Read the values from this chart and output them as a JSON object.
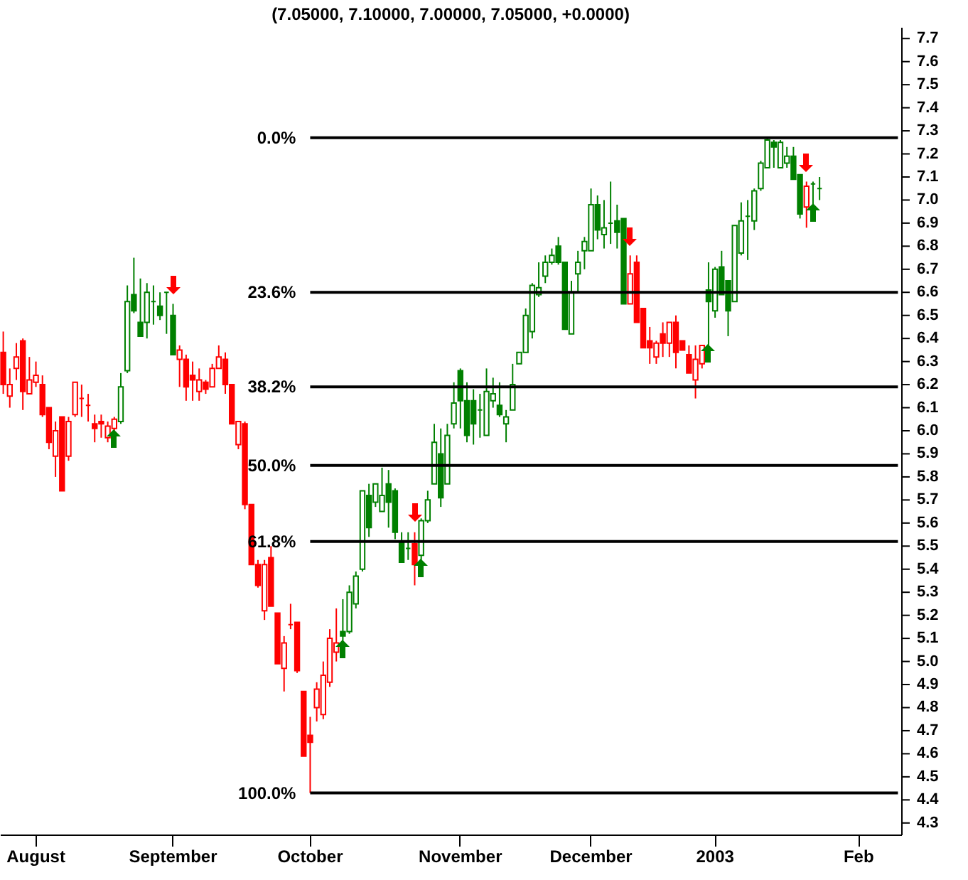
{
  "chart_data": {
    "type": "candlestick",
    "title": "(7.05000, 7.10000, 7.00000, 7.05000, +0.0000)",
    "categories": [
      null,
      null,
      null,
      null,
      null,
      "August",
      null,
      null,
      null,
      null,
      null,
      null,
      null,
      null,
      null,
      null,
      null,
      null,
      null,
      null,
      null,
      null,
      null,
      null,
      null,
      null,
      "September",
      null,
      null,
      null,
      null,
      null,
      null,
      null,
      null,
      null,
      null,
      null,
      null,
      null,
      null,
      null,
      null,
      null,
      null,
      null,
      null,
      "October",
      null,
      null,
      null,
      null,
      null,
      null,
      null,
      null,
      null,
      null,
      null,
      null,
      null,
      null,
      null,
      null,
      null,
      null,
      null,
      null,
      null,
      null,
      "November",
      null,
      null,
      null,
      null,
      null,
      null,
      null,
      null,
      null,
      null,
      null,
      null,
      null,
      null,
      null,
      null,
      null,
      null,
      null,
      "December",
      null,
      null,
      null,
      null,
      null,
      null,
      null,
      null,
      null,
      null,
      null,
      null,
      null,
      null,
      null,
      null,
      null,
      null,
      "2003",
      null,
      null,
      null,
      null,
      null,
      null,
      null,
      null,
      null,
      null,
      null,
      null,
      null,
      null,
      null,
      null,
      null,
      null,
      null,
      null,
      null,
      "Feb",
      null,
      null,
      null,
      null,
      null,
      null
    ],
    "ohlc": [
      [
        6.34,
        6.43,
        6.16,
        6.2
      ],
      [
        6.15,
        6.27,
        6.1,
        6.2
      ],
      [
        6.27,
        6.38,
        6.22,
        6.32
      ],
      [
        6.39,
        6.4,
        6.09,
        6.17
      ],
      [
        6.16,
        6.32,
        6.16,
        6.22
      ],
      [
        6.21,
        6.3,
        6.19,
        6.24
      ],
      [
        6.2,
        6.24,
        6.06,
        6.07
      ],
      [
        6.1,
        6.1,
        5.92,
        5.95
      ],
      [
        5.89,
        6.04,
        5.8,
        6.0
      ],
      [
        6.06,
        6.06,
        5.74,
        5.74
      ],
      [
        5.89,
        6.06,
        5.87,
        6.04
      ],
      [
        6.07,
        6.21,
        6.06,
        6.21
      ],
      [
        6.14,
        6.2,
        6.06,
        6.14
      ],
      [
        6.11,
        6.16,
        6.04,
        6.11
      ],
      [
        6.03,
        6.07,
        5.95,
        6.01
      ],
      [
        6.04,
        6.07,
        5.97,
        6.03
      ],
      [
        5.97,
        6.04,
        5.95,
        6.02
      ],
      [
        6.01,
        6.06,
        6.0,
        6.05
      ],
      [
        6.04,
        6.25,
        6.03,
        6.19
      ],
      [
        6.26,
        6.63,
        6.25,
        6.56
      ],
      [
        6.59,
        6.75,
        6.51,
        6.52
      ],
      [
        6.47,
        6.66,
        6.41,
        6.41
      ],
      [
        6.47,
        6.64,
        6.4,
        6.6
      ],
      [
        6.56,
        6.63,
        6.46,
        6.56
      ],
      [
        6.54,
        6.6,
        6.48,
        6.5
      ],
      [
        6.6,
        6.6,
        6.42,
        6.6
      ],
      [
        6.5,
        6.55,
        6.33,
        6.33
      ],
      [
        6.31,
        6.37,
        6.19,
        6.35
      ],
      [
        6.31,
        6.33,
        6.13,
        6.19
      ],
      [
        6.24,
        6.3,
        6.13,
        6.22
      ],
      [
        6.17,
        6.27,
        6.13,
        6.22
      ],
      [
        6.21,
        6.22,
        6.16,
        6.18
      ],
      [
        6.19,
        6.29,
        6.19,
        6.27
      ],
      [
        6.27,
        6.37,
        6.27,
        6.32
      ],
      [
        6.31,
        6.34,
        6.16,
        6.2
      ],
      [
        6.2,
        6.2,
        6.03,
        6.03
      ],
      [
        5.94,
        6.04,
        5.92,
        6.04
      ],
      [
        6.03,
        6.04,
        5.66,
        5.68
      ],
      [
        5.68,
        5.68,
        5.42,
        5.42
      ],
      [
        5.42,
        5.44,
        5.32,
        5.33
      ],
      [
        5.22,
        5.44,
        5.18,
        5.42
      ],
      [
        5.45,
        5.5,
        5.24,
        5.24
      ],
      [
        5.21,
        5.21,
        4.99,
        4.99
      ],
      [
        4.97,
        5.11,
        4.87,
        5.08
      ],
      [
        5.16,
        5.25,
        5.14,
        5.16
      ],
      [
        5.17,
        5.17,
        4.95,
        4.96
      ],
      [
        4.87,
        4.87,
        4.59,
        4.59
      ],
      [
        4.68,
        4.76,
        4.43,
        4.65
      ],
      [
        4.8,
        4.91,
        4.74,
        4.88
      ],
      [
        4.77,
        5.0,
        4.75,
        4.94
      ],
      [
        4.91,
        5.14,
        4.89,
        5.1
      ],
      [
        5.04,
        5.23,
        5.0,
        5.08
      ],
      [
        5.13,
        5.27,
        5.09,
        5.11
      ],
      [
        5.13,
        5.33,
        5.12,
        5.3
      ],
      [
        5.25,
        5.39,
        5.23,
        5.37
      ],
      [
        5.4,
        5.74,
        5.39,
        5.74
      ],
      [
        5.72,
        5.77,
        5.54,
        5.58
      ],
      [
        5.69,
        5.77,
        5.67,
        5.77
      ],
      [
        5.65,
        5.84,
        5.65,
        5.72
      ],
      [
        5.77,
        5.83,
        5.58,
        5.69
      ],
      [
        5.74,
        5.75,
        5.53,
        5.56
      ],
      [
        5.52,
        5.56,
        5.43,
        5.43
      ],
      [
        5.49,
        5.56,
        5.44,
        5.49
      ],
      [
        5.51,
        5.56,
        5.33,
        5.42
      ],
      [
        5.46,
        5.62,
        5.44,
        5.61
      ],
      [
        5.61,
        5.74,
        5.6,
        5.7
      ],
      [
        5.77,
        6.03,
        5.77,
        5.95
      ],
      [
        5.9,
        6.01,
        5.67,
        5.71
      ],
      [
        5.77,
        6.03,
        5.77,
        5.98
      ],
      [
        6.03,
        6.21,
        6.01,
        6.12
      ],
      [
        6.26,
        6.27,
        6.01,
        6.13
      ],
      [
        6.13,
        6.21,
        5.95,
        5.98
      ],
      [
        6.13,
        6.18,
        5.94,
        6.03
      ],
      [
        6.09,
        6.16,
        5.97,
        6.09
      ],
      [
        5.98,
        6.27,
        5.98,
        6.17
      ],
      [
        6.13,
        6.23,
        6.1,
        6.16
      ],
      [
        6.11,
        6.21,
        6.06,
        6.07
      ],
      [
        6.03,
        6.09,
        5.95,
        6.06
      ],
      [
        6.09,
        6.29,
        6.09,
        6.2
      ],
      [
        6.29,
        6.34,
        6.29,
        6.34
      ],
      [
        6.34,
        6.53,
        6.34,
        6.5
      ],
      [
        6.43,
        6.64,
        6.4,
        6.63
      ],
      [
        6.59,
        6.73,
        6.58,
        6.62
      ],
      [
        6.67,
        6.76,
        6.64,
        6.73
      ],
      [
        6.73,
        6.79,
        6.72,
        6.76
      ],
      [
        6.8,
        6.84,
        6.72,
        6.73
      ],
      [
        6.73,
        6.73,
        6.44,
        6.44
      ],
      [
        6.42,
        6.65,
        6.42,
        6.6
      ],
      [
        6.68,
        6.78,
        6.6,
        6.73
      ],
      [
        6.78,
        6.84,
        6.7,
        6.82
      ],
      [
        6.78,
        7.05,
        6.78,
        6.98
      ],
      [
        6.98,
        7.02,
        6.83,
        6.87
      ],
      [
        6.85,
        7.0,
        6.79,
        6.88
      ],
      [
        6.9,
        7.08,
        6.81,
        6.9
      ],
      [
        6.91,
        6.98,
        6.79,
        6.86
      ],
      [
        6.92,
        6.92,
        6.55,
        6.55
      ],
      [
        6.55,
        6.76,
        6.55,
        6.68
      ],
      [
        6.73,
        6.76,
        6.47,
        6.47
      ],
      [
        6.53,
        6.53,
        6.36,
        6.36
      ],
      [
        6.39,
        6.45,
        6.29,
        6.36
      ],
      [
        6.32,
        6.39,
        6.29,
        6.38
      ],
      [
        6.42,
        6.47,
        6.32,
        6.38
      ],
      [
        6.38,
        6.47,
        6.32,
        6.47
      ],
      [
        6.47,
        6.5,
        6.27,
        6.34
      ],
      [
        6.39,
        6.39,
        6.35,
        6.35
      ],
      [
        6.33,
        6.37,
        6.25,
        6.25
      ],
      [
        6.22,
        6.37,
        6.14,
        6.31
      ],
      [
        6.29,
        6.37,
        6.27,
        6.37
      ],
      [
        6.61,
        6.73,
        6.37,
        6.56
      ],
      [
        6.52,
        6.71,
        6.49,
        6.7
      ],
      [
        6.71,
        6.78,
        6.59,
        6.59
      ],
      [
        6.65,
        6.65,
        6.41,
        6.52
      ],
      [
        6.56,
        6.89,
        6.56,
        6.89
      ],
      [
        6.77,
        6.99,
        6.76,
        6.91
      ],
      [
        6.93,
        7.0,
        6.74,
        6.93
      ],
      [
        6.91,
        7.05,
        6.87,
        7.04
      ],
      [
        7.05,
        7.17,
        7.04,
        7.16
      ],
      [
        7.14,
        7.27,
        7.14,
        7.26
      ],
      [
        7.25,
        7.26,
        7.14,
        7.23
      ],
      [
        7.14,
        7.26,
        7.14,
        7.25
      ],
      [
        7.16,
        7.23,
        7.14,
        7.19
      ],
      [
        7.19,
        7.23,
        7.09,
        7.09
      ],
      [
        7.11,
        7.11,
        6.92,
        6.94
      ],
      [
        6.97,
        7.08,
        6.88,
        7.06
      ],
      [
        7.07,
        7.08,
        6.98,
        7.07
      ],
      [
        7.05,
        7.1,
        7.0,
        7.05
      ],
      null,
      null,
      null,
      null,
      null,
      null,
      null,
      null,
      null,
      null,
      null,
      null
    ],
    "colors": [
      "#ff0000",
      "#ff0000",
      "#ff0000",
      "#ff0000",
      "#ff0000",
      "#ff0000",
      "#ff0000",
      "#ff0000",
      "#ff0000",
      "#ff0000",
      "#ff0000",
      "#ff0000",
      "#ff0000",
      "#ff0000",
      "#ff0000",
      "#ff0000",
      "#ff0000",
      "#ff0000",
      "#008000",
      "#008000",
      "#008000",
      "#008000",
      "#008000",
      "#008000",
      "#008000",
      "#008000",
      "#008000",
      "#ff0000",
      "#ff0000",
      "#ff0000",
      "#ff0000",
      "#ff0000",
      "#ff0000",
      "#ff0000",
      "#ff0000",
      "#ff0000",
      "#ff0000",
      "#ff0000",
      "#ff0000",
      "#ff0000",
      "#ff0000",
      "#ff0000",
      "#ff0000",
      "#ff0000",
      "#ff0000",
      "#ff0000",
      "#ff0000",
      "#ff0000",
      "#ff0000",
      "#ff0000",
      "#ff0000",
      "#ff0000",
      "#008000",
      "#008000",
      "#008000",
      "#008000",
      "#008000",
      "#008000",
      "#008000",
      "#008000",
      "#008000",
      "#008000",
      "#008000",
      "#ff0000",
      "#008000",
      "#008000",
      "#008000",
      "#008000",
      "#008000",
      "#008000",
      "#008000",
      "#008000",
      "#008000",
      "#008000",
      "#008000",
      "#008000",
      "#008000",
      "#008000",
      "#008000",
      "#008000",
      "#008000",
      "#008000",
      "#008000",
      "#008000",
      "#008000",
      "#008000",
      "#008000",
      "#008000",
      "#008000",
      "#008000",
      "#008000",
      "#008000",
      "#008000",
      "#008000",
      "#008000",
      "#008000",
      "#ff0000",
      "#ff0000",
      "#ff0000",
      "#ff0000",
      "#ff0000",
      "#ff0000",
      "#ff0000",
      "#ff0000",
      "#ff0000",
      "#ff0000",
      "#ff0000",
      "#ff0000",
      "#008000",
      "#008000",
      "#008000",
      "#008000",
      "#008000",
      "#008000",
      "#008000",
      "#008000",
      "#008000",
      "#008000",
      "#008000",
      "#008000",
      "#008000",
      "#008000",
      "#008000",
      "#ff0000",
      "#008000",
      "#008000",
      null,
      null,
      null,
      null,
      null,
      null,
      null,
      null,
      null,
      null,
      null,
      null
    ],
    "ylim": [
      4.25,
      7.75
    ],
    "yticks": [
      4.3,
      4.4,
      4.5,
      4.6,
      4.7,
      4.8,
      4.9,
      {
        "value": 5,
        "label": "5.0"
      },
      5.1,
      5.2,
      5.3,
      5.4,
      5.5,
      5.6,
      5.7,
      5.8,
      5.9,
      {
        "value": 6,
        "label": "6.0"
      },
      6.1,
      6.2,
      6.3,
      6.4,
      6.5,
      6.6,
      6.7,
      6.8,
      6.9,
      {
        "value": 7,
        "label": "7.0"
      },
      7.1,
      7.2,
      7.3,
      7.4,
      7.5,
      7.6,
      7.7
    ],
    "ref_lines": [
      {
        "axis": "y",
        "value": 7.27,
        "color": "#000000"
      },
      {
        "axis": "y",
        "value": 6.6,
        "color": "#000000"
      },
      {
        "axis": "y",
        "value": 6.19,
        "color": "#000000"
      },
      {
        "axis": "y",
        "value": 5.85,
        "color": "#000000"
      },
      {
        "axis": "y",
        "value": 5.52,
        "color": "#000000"
      },
      {
        "axis": "y",
        "value": 4.43,
        "color": "#000000"
      }
    ],
    "annotations": [
      "0.0%",
      "23.6%",
      "38.2%",
      "50.0%",
      "61.8%",
      "100.0%"
    ]
  }
}
